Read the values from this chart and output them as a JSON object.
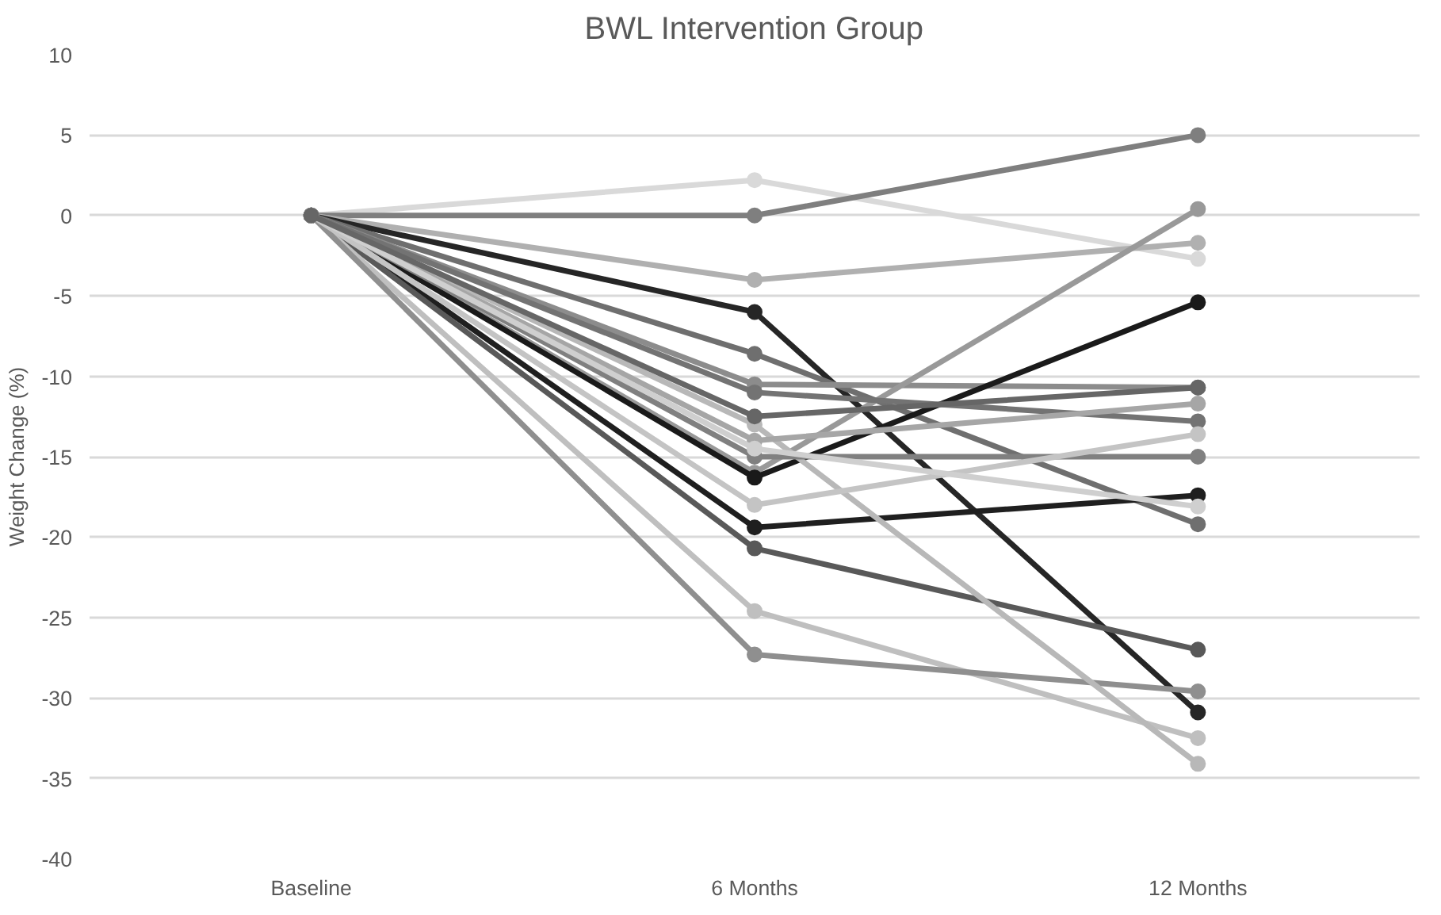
{
  "chart_data": {
    "type": "line",
    "title": "BWL Intervention Group",
    "ylabel": "Weight Change (%)",
    "categories": [
      "Baseline",
      "6 Months",
      "12 Months"
    ],
    "ylim": [
      -40,
      10
    ],
    "yticks": [
      -40,
      -35,
      -30,
      -25,
      -20,
      -15,
      -10,
      -5,
      0,
      5,
      10
    ],
    "grid": "y",
    "marker": "circle",
    "line_style": "solid",
    "series": [
      {
        "color": "#d9d9d9",
        "values": [
          0,
          2.2,
          -2.7
        ]
      },
      {
        "color": "#7f7f7f",
        "values": [
          0,
          0,
          5.0
        ]
      },
      {
        "color": "#b0b0b0",
        "values": [
          0,
          -4,
          -1.7
        ]
      },
      {
        "color": "#262626",
        "values": [
          0,
          -6,
          -30.9
        ]
      },
      {
        "color": "#6f6f6f",
        "values": [
          0,
          -8.6,
          -19.2
        ]
      },
      {
        "color": "#8c8c8c",
        "values": [
          0,
          -10.5,
          -10.7
        ]
      },
      {
        "color": "#999999",
        "values": [
          0,
          -16,
          0.4
        ]
      },
      {
        "color": "#1a1a1a",
        "values": [
          0,
          -16.3,
          -5.4
        ]
      },
      {
        "color": "#1f1f1f",
        "values": [
          0,
          -19.4,
          -17.4
        ]
      },
      {
        "color": "#595959",
        "values": [
          0,
          -20.7,
          -27
        ]
      },
      {
        "color": "#bfbfbf",
        "values": [
          0,
          -24.6,
          -32.5
        ]
      },
      {
        "color": "#8f8f8f",
        "values": [
          0,
          -27.3,
          -29.6
        ]
      },
      {
        "color": "#b8b8b8",
        "values": [
          0,
          -13,
          -34.1
        ]
      },
      {
        "color": "#737373",
        "values": [
          0,
          -11,
          -12.8
        ]
      },
      {
        "color": "#a6a6a6",
        "values": [
          0,
          -14,
          -11.7
        ]
      },
      {
        "color": "#808080",
        "values": [
          0,
          -15,
          -15
        ]
      },
      {
        "color": "#c4c4c4",
        "values": [
          0,
          -18,
          -13.6
        ]
      },
      {
        "color": "#cfcfcf",
        "values": [
          0,
          -14.5,
          -18.1
        ]
      },
      {
        "color": "#666666",
        "values": [
          0,
          -12.5,
          -10.7
        ]
      }
    ]
  }
}
